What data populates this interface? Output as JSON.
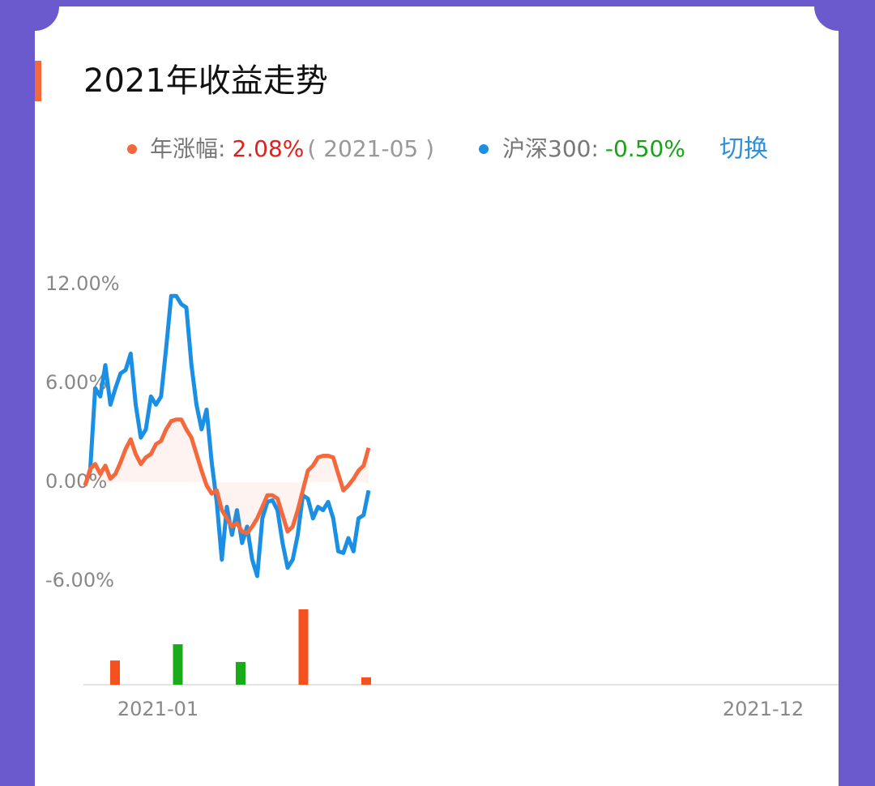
{
  "chart_data": {
    "type": "line",
    "title": "2021年收益走势",
    "toggle": "切换",
    "series": [
      {
        "name": "年涨幅:",
        "color": "#f4683c",
        "summary": "2.08%",
        "summary_color": "#e0201e",
        "summary_period": "( 2021-05 )",
        "area": true,
        "values": [
          -0.2,
          0.8,
          1.1,
          0.5,
          1.0,
          0.2,
          0.5,
          1.2,
          2.0,
          2.6,
          1.7,
          1.1,
          1.5,
          1.7,
          2.3,
          2.5,
          3.2,
          3.7,
          3.8,
          3.8,
          3.2,
          2.7,
          1.7,
          0.7,
          -0.2,
          -0.7,
          -0.5,
          -1.7,
          -2.2,
          -2.7,
          -2.5,
          -3.0,
          -3.1,
          -2.7,
          -2.2,
          -1.5,
          -0.8,
          -0.8,
          -1.0,
          -2.0,
          -3.0,
          -2.7,
          -1.7,
          -0.5,
          0.7,
          1.0,
          1.5,
          1.6,
          1.6,
          1.5,
          0.5,
          -0.5,
          -0.2,
          0.2,
          0.7,
          1.0,
          2.08
        ]
      },
      {
        "name": "沪深300:",
        "color": "#1a8fe3",
        "summary": "-0.50%",
        "summary_color": "#1aa31a",
        "values": [
          -0.2,
          0.7,
          5.7,
          5.2,
          7.1,
          4.7,
          5.7,
          6.6,
          6.8,
          7.8,
          4.7,
          2.7,
          3.2,
          5.2,
          4.7,
          5.2,
          8.1,
          11.3,
          11.3,
          10.8,
          10.6,
          7.1,
          4.7,
          3.2,
          4.4,
          1.2,
          -1.2,
          -4.7,
          -1.5,
          -3.2,
          -1.7,
          -3.7,
          -2.7,
          -4.7,
          -5.7,
          -2.2,
          -1.2,
          -1.1,
          -1.7,
          -3.7,
          -5.2,
          -4.7,
          -3.2,
          -0.8,
          -1.0,
          -2.2,
          -1.5,
          -1.7,
          -1.2,
          -2.2,
          -4.2,
          -4.3,
          -3.4,
          -4.2,
          -2.2,
          -2.0,
          -0.5
        ]
      }
    ],
    "ylim": [
      -6,
      12
    ],
    "yticks": [
      {
        "value": 12,
        "label": "12.00%"
      },
      {
        "value": 6,
        "label": "6.00%"
      },
      {
        "value": 0,
        "label": "0.00%"
      },
      {
        "value": -6,
        "label": "-6.00%"
      }
    ],
    "x_labels": [
      "2021-01",
      "2021-12"
    ],
    "bars": {
      "values": [
        1.15,
        -1.92,
        -1.08,
        3.58,
        0.35
      ],
      "positive_color": "#f4511e",
      "negative_color": "#1aab1a"
    }
  }
}
